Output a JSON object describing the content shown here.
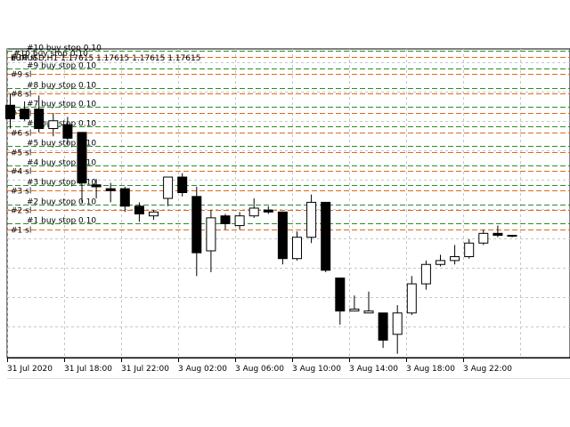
{
  "window": {
    "symbol_line": "EURUSD,H1  1.17615 1.17615 1.17615 1.17615",
    "title_overlay": "#10 buy stop 0.10"
  },
  "colors": {
    "background": "#ffffff",
    "grid": "#c8c8c8",
    "bull_body": "#ffffff",
    "bear_body": "#000000",
    "candle_outline": "#000000",
    "level_green": "#2e8b2e",
    "level_orange": "#e06a1a",
    "axis": "#000000"
  },
  "chart_data": {
    "type": "candlestick",
    "symbol": "EURUSD",
    "timeframe": "H1",
    "x_ticks": [
      "31 Jul 2020",
      "31 Jul 18:00",
      "31 Jul 22:00",
      "3 Aug 02:00",
      "3 Aug 06:00",
      "3 Aug 10:00",
      "3 Aug 14:00",
      "3 Aug 18:00",
      "3 Aug 22:00"
    ],
    "candles": [
      {
        "o": 1.182,
        "h": 1.1826,
        "l": 1.1808,
        "c": 1.1813
      },
      {
        "o": 1.1818,
        "h": 1.1822,
        "l": 1.1812,
        "c": 1.1813
      },
      {
        "o": 1.1818,
        "h": 1.1825,
        "l": 1.1806,
        "c": 1.1808
      },
      {
        "o": 1.1808,
        "h": 1.1816,
        "l": 1.1804,
        "c": 1.1812
      },
      {
        "o": 1.181,
        "h": 1.1814,
        "l": 1.18,
        "c": 1.1803
      },
      {
        "o": 1.1806,
        "h": 1.1806,
        "l": 1.177,
        "c": 1.178
      },
      {
        "o": 1.1779,
        "h": 1.1782,
        "l": 1.1772,
        "c": 1.1778
      },
      {
        "o": 1.1777,
        "h": 1.178,
        "l": 1.177,
        "c": 1.1776
      },
      {
        "o": 1.1777,
        "h": 1.1778,
        "l": 1.1765,
        "c": 1.1768
      },
      {
        "o": 1.1768,
        "h": 1.177,
        "l": 1.176,
        "c": 1.1764
      },
      {
        "o": 1.1763,
        "h": 1.1766,
        "l": 1.1761,
        "c": 1.1765
      },
      {
        "o": 1.1772,
        "h": 1.1783,
        "l": 1.1768,
        "c": 1.1783
      },
      {
        "o": 1.1783,
        "h": 1.1785,
        "l": 1.1773,
        "c": 1.1775
      },
      {
        "o": 1.1773,
        "h": 1.1778,
        "l": 1.1732,
        "c": 1.1744
      },
      {
        "o": 1.1745,
        "h": 1.1766,
        "l": 1.1734,
        "c": 1.1762
      },
      {
        "o": 1.1763,
        "h": 1.1764,
        "l": 1.1756,
        "c": 1.1759
      },
      {
        "o": 1.1758,
        "h": 1.1765,
        "l": 1.1756,
        "c": 1.1763
      },
      {
        "o": 1.1763,
        "h": 1.1772,
        "l": 1.1762,
        "c": 1.1767
      },
      {
        "o": 1.1766,
        "h": 1.1768,
        "l": 1.1764,
        "c": 1.1765
      },
      {
        "o": 1.1765,
        "h": 1.1765,
        "l": 1.1738,
        "c": 1.1741
      },
      {
        "o": 1.1741,
        "h": 1.1755,
        "l": 1.174,
        "c": 1.1752
      },
      {
        "o": 1.1752,
        "h": 1.1774,
        "l": 1.1749,
        "c": 1.177
      },
      {
        "o": 1.177,
        "h": 1.177,
        "l": 1.1734,
        "c": 1.1735
      },
      {
        "o": 1.1731,
        "h": 1.1731,
        "l": 1.1707,
        "c": 1.1714
      },
      {
        "o": 1.1714,
        "h": 1.1722,
        "l": 1.1714,
        "c": 1.1715
      },
      {
        "o": 1.1713,
        "h": 1.1724,
        "l": 1.1713,
        "c": 1.1714
      },
      {
        "o": 1.1713,
        "h": 1.1713,
        "l": 1.1695,
        "c": 1.1699
      },
      {
        "o": 1.1702,
        "h": 1.1717,
        "l": 1.1692,
        "c": 1.1713
      },
      {
        "o": 1.1713,
        "h": 1.1732,
        "l": 1.1712,
        "c": 1.1728
      },
      {
        "o": 1.1728,
        "h": 1.174,
        "l": 1.1725,
        "c": 1.1738
      },
      {
        "o": 1.1738,
        "h": 1.1743,
        "l": 1.1737,
        "c": 1.174
      },
      {
        "o": 1.174,
        "h": 1.1748,
        "l": 1.1738,
        "c": 1.1742
      },
      {
        "o": 1.1742,
        "h": 1.1751,
        "l": 1.1741,
        "c": 1.1749
      },
      {
        "o": 1.1749,
        "h": 1.1756,
        "l": 1.1748,
        "c": 1.1754
      },
      {
        "o": 1.1754,
        "h": 1.1758,
        "l": 1.1752,
        "c": 1.1753
      },
      {
        "o": 1.1753,
        "h": 1.1753,
        "l": 1.1752,
        "c": 1.1753
      }
    ],
    "levels": [
      {
        "label": "#1",
        "tag": "#1 buy stop 0.10",
        "price": 1.1759,
        "sl": 1.1756
      },
      {
        "label": "#2",
        "tag": "#2 buy stop 0.10",
        "price": 1.1769,
        "sl": 1.1766
      },
      {
        "label": "#3",
        "tag": "#3 buy stop 0.10",
        "price": 1.1779,
        "sl": 1.1776
      },
      {
        "label": "#4",
        "tag": "#4 buy stop 0.10",
        "price": 1.1789,
        "sl": 1.1786
      },
      {
        "label": "#5",
        "tag": "#5 buy stop 0.10",
        "price": 1.1799,
        "sl": 1.1796
      },
      {
        "label": "#6",
        "tag": "#6 buy stop 0.10",
        "price": 1.1809,
        "sl": 1.1806
      },
      {
        "label": "#7",
        "tag": "#7 buy stop 0.10",
        "price": 1.1819,
        "sl": 1.1816
      },
      {
        "label": "#8",
        "tag": "#8 buy stop 0.10",
        "price": 1.1829,
        "sl": 1.1826
      },
      {
        "label": "#9",
        "tag": "#9 buy stop 0.10",
        "price": 1.1839,
        "sl": 1.1836
      },
      {
        "label": "#10",
        "tag": "#10 buy stop 0.10",
        "price": 1.1848,
        "sl": 1.1845
      }
    ],
    "sl_suffix": "sl",
    "tp_suffix": "tp",
    "grid": true,
    "y_range": [
      1.169,
      1.1849
    ]
  }
}
